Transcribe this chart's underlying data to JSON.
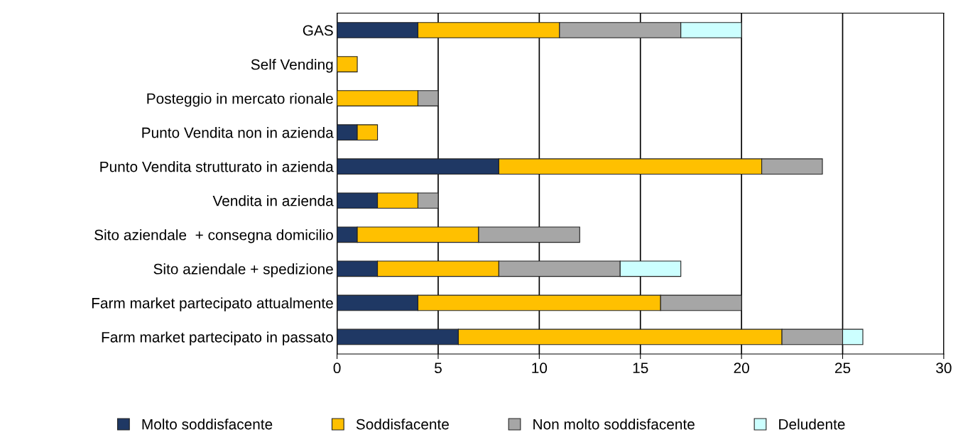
{
  "chart_data": {
    "type": "bar",
    "orientation": "horizontal",
    "stacked": true,
    "categories": [
      "GAS",
      "Self Vending",
      "Posteggio in mercato rionale",
      "Punto Vendita non in azienda",
      "Punto Vendita strutturato in azienda",
      "Vendita in azienda",
      "Sito aziendale  + consegna domicilio",
      "Sito aziendale + spedizione",
      "Farm market partecipato attualmente",
      "Farm market partecipato in passato"
    ],
    "series": [
      {
        "name": "Molto soddisfacente",
        "color": "#1f3864",
        "values": [
          4,
          null,
          null,
          1,
          8,
          2,
          1,
          2,
          4,
          6
        ]
      },
      {
        "name": "Soddisfacente",
        "color": "#ffc000",
        "values": [
          7,
          1,
          4,
          1,
          13,
          2,
          6,
          6,
          12,
          16
        ]
      },
      {
        "name": "Non molto soddisfacente",
        "color": "#a6a6a6",
        "values": [
          6,
          null,
          1,
          null,
          3,
          1,
          5,
          6,
          4,
          3
        ]
      },
      {
        "name": "Deludente",
        "color": "#ccffff",
        "values": [
          3,
          null,
          null,
          null,
          null,
          null,
          null,
          3,
          null,
          1
        ]
      }
    ],
    "xlim": [
      0,
      30
    ],
    "xticks": [
      0,
      5,
      10,
      15,
      20,
      25,
      30
    ],
    "grid": "x",
    "legend": "bottom"
  }
}
